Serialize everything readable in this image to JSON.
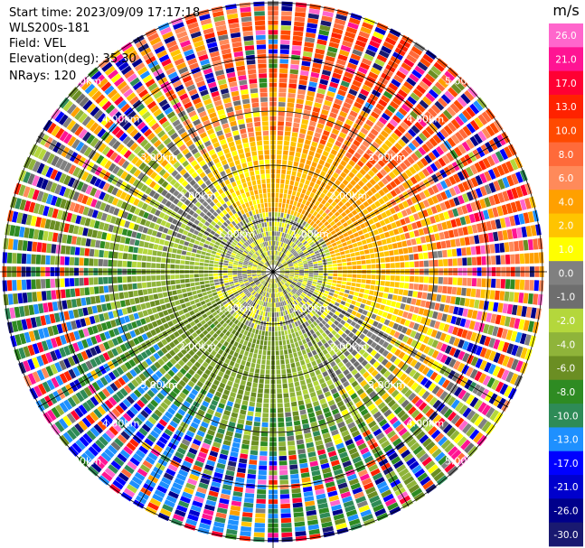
{
  "header": {
    "start_time": "Start time: 2023/09/09 17:17:18",
    "instrument": "WLS200s-181",
    "field": "Field: VEL",
    "elevation": "Elevation(deg): 35.30",
    "nrays": "NRays: 120"
  },
  "chart_data": {
    "type": "heatmap",
    "projection": "polar PPI",
    "field": "VEL",
    "units": "m/s",
    "nrays": 120,
    "elevation_deg": 35.3,
    "range_rings": [
      {
        "label": "1.00km"
      },
      {
        "label": "2.00km"
      },
      {
        "label": "3.00km"
      },
      {
        "label": "4.00km"
      },
      {
        "label": "5.00km"
      }
    ],
    "colorbar": {
      "title": "m/s",
      "ticks": [
        "26.0",
        "21.0",
        "17.0",
        "13.0",
        "10.0",
        "8.0",
        "6.0",
        "4.0",
        "2.0",
        "1.0",
        "0.0",
        "-1.0",
        "-2.0",
        "-4.0",
        "-6.0",
        "-8.0",
        "-10.0",
        "-13.0",
        "-17.0",
        "-21.0",
        "-26.0",
        "-30.0"
      ],
      "bands": [
        {
          "lo": 26,
          "hi": 30,
          "color": "#ff66cc"
        },
        {
          "lo": 21,
          "hi": 26,
          "color": "#ff1493"
        },
        {
          "lo": 17,
          "hi": 21,
          "color": "#ff0033"
        },
        {
          "lo": 13,
          "hi": 17,
          "color": "#ff2200"
        },
        {
          "lo": 10,
          "hi": 13,
          "color": "#ff4a00"
        },
        {
          "lo": 8,
          "hi": 10,
          "color": "#ff6a3a"
        },
        {
          "lo": 6,
          "hi": 8,
          "color": "#ff8a5a"
        },
        {
          "lo": 4,
          "hi": 6,
          "color": "#ffa000"
        },
        {
          "lo": 2,
          "hi": 4,
          "color": "#ffc400"
        },
        {
          "lo": 1,
          "hi": 2,
          "color": "#ffff00"
        },
        {
          "lo": 0,
          "hi": 1,
          "color": "#808080"
        },
        {
          "lo": -1,
          "hi": 0,
          "color": "#6e6e6e"
        },
        {
          "lo": -2,
          "hi": -1,
          "color": "#b4d73c"
        },
        {
          "lo": -4,
          "hi": -2,
          "color": "#8fb43a"
        },
        {
          "lo": -6,
          "hi": -4,
          "color": "#6b8e23"
        },
        {
          "lo": -8,
          "hi": -6,
          "color": "#2e8b22"
        },
        {
          "lo": -10,
          "hi": -8,
          "color": "#2e8b57"
        },
        {
          "lo": -13,
          "hi": -10,
          "color": "#1e90ff"
        },
        {
          "lo": -17,
          "hi": -13,
          "color": "#0000ff"
        },
        {
          "lo": -21,
          "hi": -17,
          "color": "#0000cd"
        },
        {
          "lo": -26,
          "hi": -21,
          "color": "#00008b"
        },
        {
          "lo": -30,
          "hi": -26,
          "color": "#191970"
        }
      ]
    }
  }
}
